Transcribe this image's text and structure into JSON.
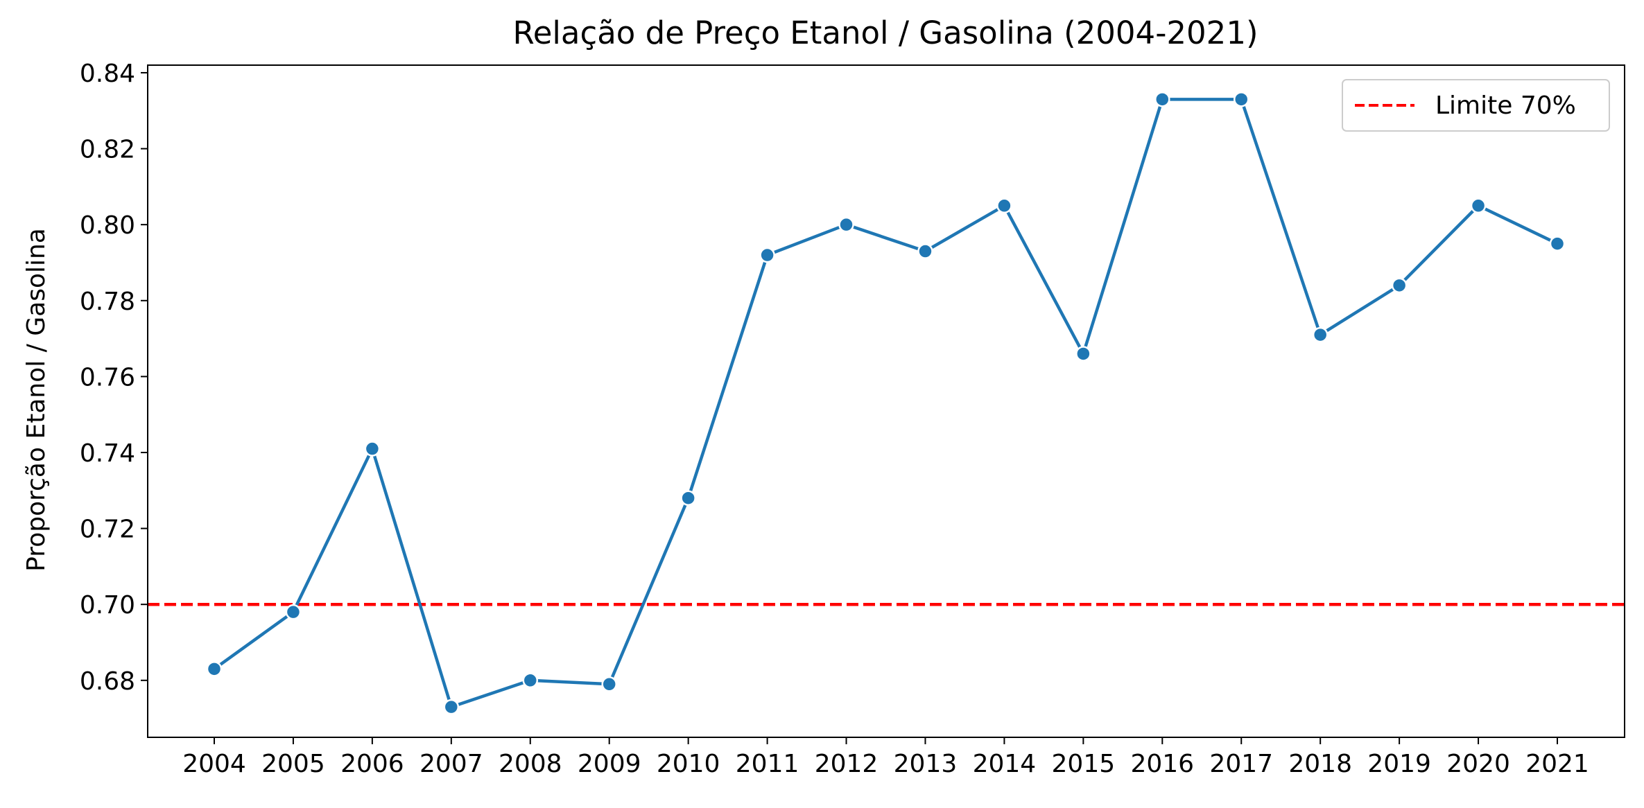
{
  "chart_data": {
    "type": "line",
    "title": "Relação de Preço Etanol / Gasolina (2004-2021)",
    "xlabel": "",
    "ylabel": "Proporção Etanol / Gasolina",
    "categories": [
      "2004",
      "2005",
      "2006",
      "2007",
      "2008",
      "2009",
      "2010",
      "2011",
      "2012",
      "2013",
      "2014",
      "2015",
      "2016",
      "2017",
      "2018",
      "2019",
      "2020",
      "2021"
    ],
    "series": [
      {
        "values": [
          0.683,
          0.698,
          0.741,
          0.673,
          0.68,
          0.679,
          0.728,
          0.792,
          0.8,
          0.793,
          0.805,
          0.766,
          0.833,
          0.833,
          0.771,
          0.784,
          0.805,
          0.795
        ],
        "color": "#1f77b4"
      }
    ],
    "reference_line": {
      "value": 0.7,
      "label": "Limite 70%",
      "color": "#ff0000",
      "style": "dashed"
    },
    "yticks": [
      "0.68",
      "0.70",
      "0.72",
      "0.74",
      "0.76",
      "0.78",
      "0.80",
      "0.82",
      "0.84"
    ],
    "ylim": [
      0.665,
      0.842
    ],
    "grid": false,
    "legend_position": "top-right"
  }
}
